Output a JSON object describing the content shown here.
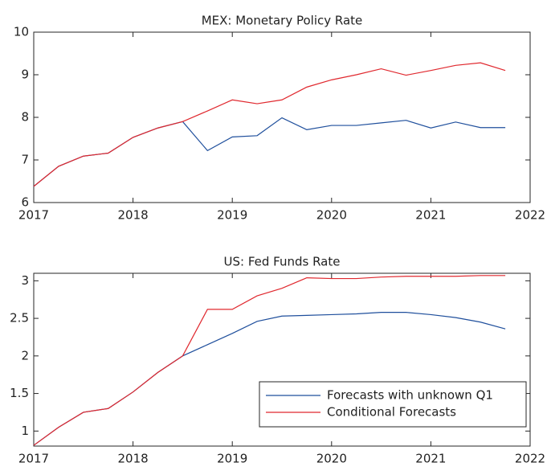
{
  "chart_data": [
    {
      "type": "line",
      "title": "MEX: Monetary Policy Rate",
      "x": [
        2017,
        2017.25,
        2017.5,
        2017.75,
        2018,
        2018.25,
        2018.5,
        2018.75,
        2019,
        2019.25,
        2019.5,
        2019.75,
        2020,
        2020.25,
        2020.5,
        2020.75,
        2021,
        2021.25,
        2021.5,
        2021.75
      ],
      "xlim": [
        2017,
        2022
      ],
      "xticks": [
        2017,
        2018,
        2019,
        2020,
        2021,
        2022
      ],
      "ylim": [
        6,
        10
      ],
      "yticks": [
        6,
        7,
        8,
        9,
        10
      ],
      "series": [
        {
          "color": "#1f4f9c",
          "values": [
            6.38,
            6.85,
            7.09,
            7.16,
            7.53,
            7.75,
            7.9,
            7.22,
            7.54,
            7.57,
            7.99,
            7.71,
            7.81,
            7.81,
            7.87,
            7.93,
            7.75,
            7.89,
            7.76,
            7.76
          ]
        },
        {
          "color": "#e0282e",
          "values": [
            6.38,
            6.85,
            7.09,
            7.16,
            7.53,
            7.75,
            7.9,
            8.15,
            8.41,
            8.32,
            8.41,
            8.71,
            8.88,
            9.0,
            9.14,
            8.99,
            9.1,
            9.22,
            9.28,
            9.1
          ]
        }
      ]
    },
    {
      "type": "line",
      "title": "US: Fed Funds Rate",
      "x": [
        2017,
        2017.25,
        2017.5,
        2017.75,
        2018,
        2018.25,
        2018.5,
        2018.75,
        2019,
        2019.25,
        2019.5,
        2019.75,
        2020,
        2020.25,
        2020.5,
        2020.75,
        2021,
        2021.25,
        2021.5,
        2021.75
      ],
      "xlim": [
        2017,
        2022
      ],
      "xticks": [
        2017,
        2018,
        2019,
        2020,
        2021,
        2022
      ],
      "ylim": [
        0.8,
        3.1
      ],
      "yticks": [
        1,
        1.5,
        2,
        2.5,
        3
      ],
      "legend": "lower right",
      "series": [
        {
          "name": "Forecasts with unknown Q1",
          "color": "#1f4f9c",
          "values": [
            0.81,
            1.05,
            1.25,
            1.3,
            1.52,
            1.78,
            2.0,
            2.15,
            2.3,
            2.46,
            2.53,
            2.54,
            2.55,
            2.56,
            2.58,
            2.58,
            2.55,
            2.51,
            2.45,
            2.36
          ]
        },
        {
          "name": "Conditional Forecasts",
          "color": "#e0282e",
          "values": [
            0.81,
            1.05,
            1.25,
            1.3,
            1.52,
            1.78,
            2.0,
            2.62,
            2.62,
            2.8,
            2.9,
            3.04,
            3.03,
            3.03,
            3.05,
            3.06,
            3.06,
            3.06,
            3.07,
            3.07
          ]
        }
      ]
    }
  ]
}
